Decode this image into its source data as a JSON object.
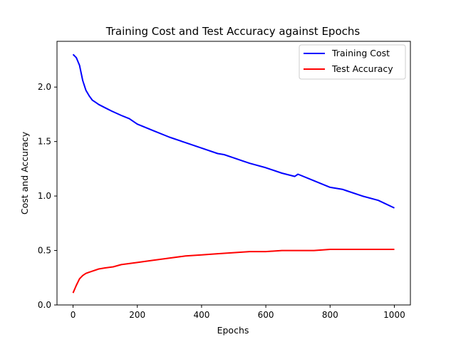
{
  "chart_data": {
    "type": "line",
    "title": "Training Cost and Test Accuracy against Epochs",
    "xlabel": "Epochs",
    "ylabel": "Cost and Accuracy",
    "xlim": [
      -50,
      1050
    ],
    "ylim": [
      0.0,
      2.42
    ],
    "xticks": [
      0,
      200,
      400,
      600,
      800,
      1000
    ],
    "xtick_labels": [
      "0",
      "200",
      "400",
      "600",
      "800",
      "1000"
    ],
    "yticks": [
      0.0,
      0.5,
      1.0,
      1.5,
      2.0
    ],
    "ytick_labels": [
      "0.0",
      "0.5",
      "1.0",
      "1.5",
      "2.0"
    ],
    "grid": false,
    "legend_position": "top-right",
    "series": [
      {
        "name": "Training Cost",
        "color": "#0000ff",
        "x": [
          0,
          10,
          20,
          30,
          40,
          50,
          60,
          70,
          80,
          100,
          120,
          150,
          175,
          200,
          250,
          300,
          350,
          400,
          450,
          470,
          500,
          530,
          550,
          600,
          650,
          690,
          700,
          750,
          800,
          840,
          850,
          900,
          950,
          1000
        ],
        "y": [
          2.3,
          2.27,
          2.2,
          2.06,
          1.97,
          1.92,
          1.88,
          1.86,
          1.84,
          1.81,
          1.78,
          1.74,
          1.71,
          1.66,
          1.6,
          1.54,
          1.49,
          1.44,
          1.39,
          1.38,
          1.35,
          1.32,
          1.3,
          1.26,
          1.21,
          1.18,
          1.2,
          1.14,
          1.08,
          1.06,
          1.05,
          1.0,
          0.96,
          0.89
        ]
      },
      {
        "name": "Test Accuracy",
        "color": "#ff0000",
        "x": [
          0,
          10,
          20,
          30,
          40,
          50,
          60,
          80,
          100,
          125,
          150,
          200,
          250,
          300,
          350,
          400,
          450,
          500,
          550,
          600,
          650,
          700,
          750,
          800,
          850,
          900,
          950,
          1000
        ],
        "y": [
          0.11,
          0.18,
          0.24,
          0.27,
          0.29,
          0.3,
          0.31,
          0.33,
          0.34,
          0.35,
          0.37,
          0.39,
          0.41,
          0.43,
          0.45,
          0.46,
          0.47,
          0.48,
          0.49,
          0.49,
          0.5,
          0.5,
          0.5,
          0.51,
          0.51,
          0.51,
          0.51,
          0.51
        ]
      }
    ]
  }
}
